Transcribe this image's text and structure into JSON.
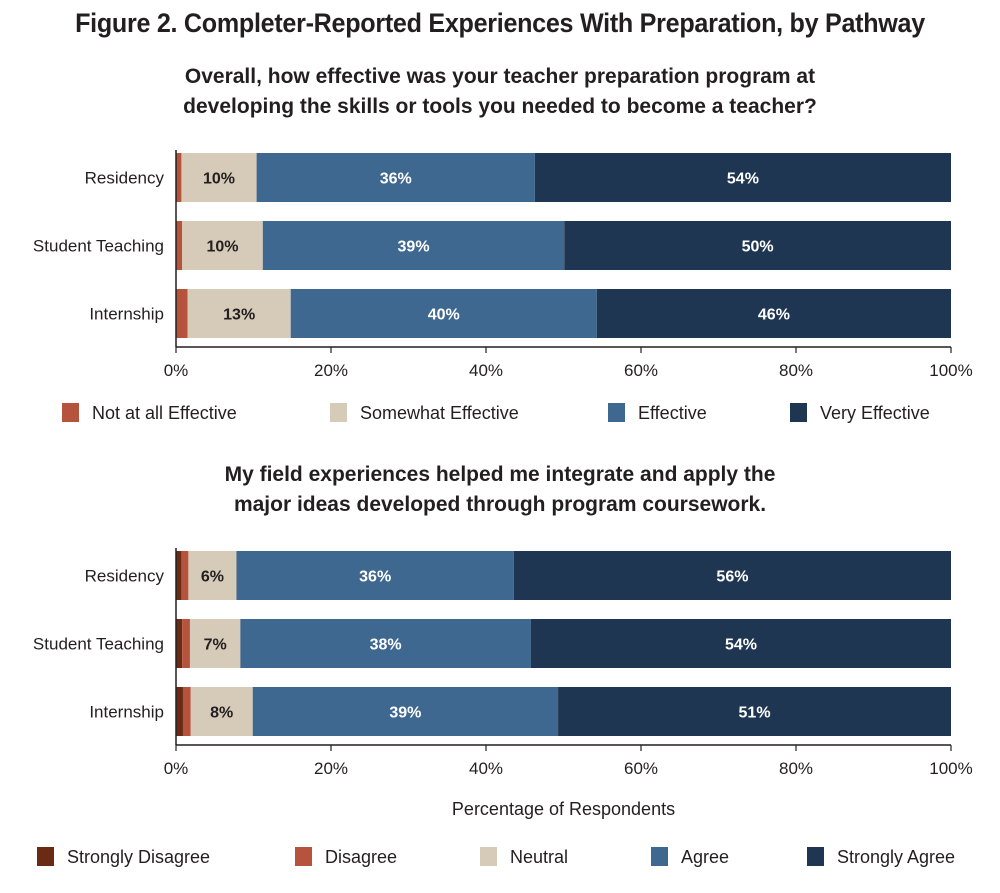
{
  "figure_title": "Figure 2. Completer-Reported Experiences With Preparation, by Pathway",
  "chart_data": [
    {
      "type": "bar",
      "orientation": "horizontal",
      "stacked": true,
      "title_lines": [
        "Overall, how effective was your teacher preparation program at",
        "developing the skills or tools you needed to become a teacher?"
      ],
      "categories": [
        "Residency",
        "Student Teaching",
        "Internship"
      ],
      "xlim": [
        0,
        100
      ],
      "xticks": [
        "0%",
        "20%",
        "40%",
        "60%",
        "80%",
        "100%"
      ],
      "xlabel": "",
      "legend_position": "bottom",
      "series": [
        {
          "name": "Not at all Effective",
          "color": "#b5533c",
          "values": [
            0.7,
            0.8,
            1.5
          ],
          "labels": [
            "",
            "",
            ""
          ]
        },
        {
          "name": "Somewhat Effective",
          "color": "#d6cbb9",
          "values": [
            9.7,
            10.4,
            13.3
          ],
          "labels": [
            "10%",
            "10%",
            "13%"
          ]
        },
        {
          "name": "Effective",
          "color": "#3f6891",
          "values": [
            35.9,
            38.9,
            39.5
          ],
          "labels": [
            "36%",
            "39%",
            "40%"
          ]
        },
        {
          "name": "Very Effective",
          "color": "#1e3652",
          "values": [
            53.7,
            49.9,
            45.7
          ],
          "labels": [
            "54%",
            "50%",
            "46%"
          ]
        }
      ]
    },
    {
      "type": "bar",
      "orientation": "horizontal",
      "stacked": true,
      "title_lines": [
        "My field experiences helped me integrate and apply the",
        "major ideas developed through program coursework."
      ],
      "categories": [
        "Residency",
        "Student Teaching",
        "Internship"
      ],
      "xlim": [
        0,
        100
      ],
      "xticks": [
        "0%",
        "20%",
        "40%",
        "60%",
        "80%",
        "100%"
      ],
      "xlabel": "Percentage of Respondents",
      "legend_position": "bottom",
      "series": [
        {
          "name": "Strongly Disagree",
          "color": "#6b2a14",
          "values": [
            0.7,
            0.8,
            0.9
          ],
          "labels": [
            "",
            "",
            ""
          ]
        },
        {
          "name": "Disagree",
          "color": "#b5533c",
          "values": [
            0.9,
            1.0,
            1.0
          ],
          "labels": [
            "",
            "",
            ""
          ]
        },
        {
          "name": "Neutral",
          "color": "#d6cbb9",
          "values": [
            6.2,
            6.5,
            8.0
          ],
          "labels": [
            "6%",
            "7%",
            "8%"
          ]
        },
        {
          "name": "Agree",
          "color": "#3f6891",
          "values": [
            35.8,
            37.5,
            39.4
          ],
          "labels": [
            "36%",
            "38%",
            "39%"
          ]
        },
        {
          "name": "Strongly Agree",
          "color": "#1e3652",
          "values": [
            56.4,
            54.2,
            50.7
          ],
          "labels": [
            "56%",
            "54%",
            "51%"
          ]
        }
      ]
    }
  ]
}
